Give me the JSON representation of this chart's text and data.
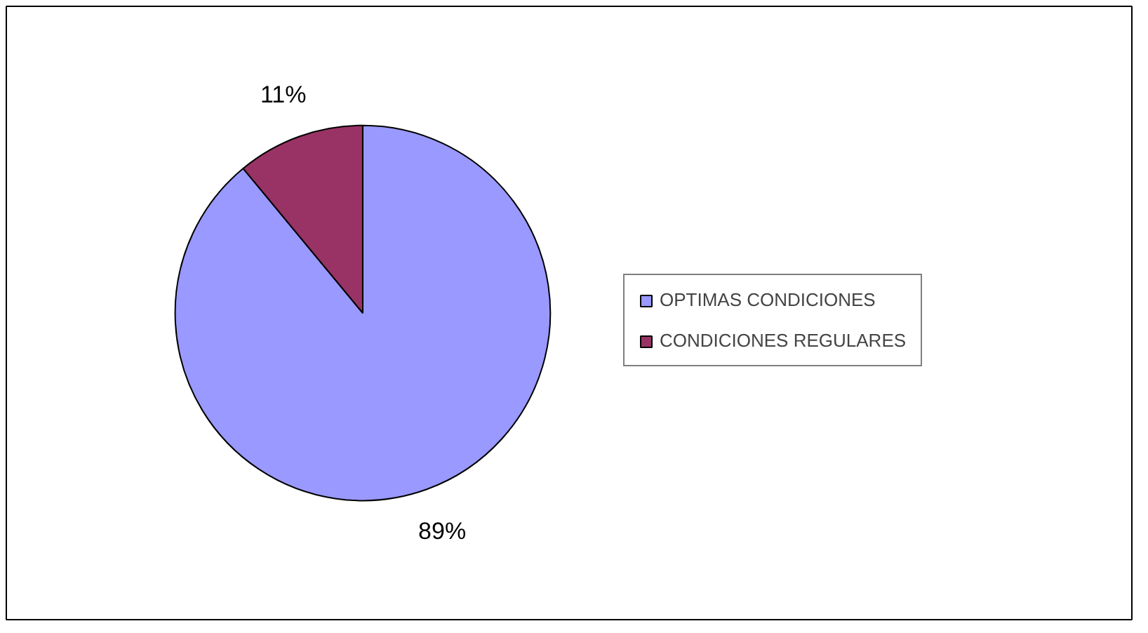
{
  "chart_data": {
    "type": "pie",
    "categories": [
      "OPTIMAS CONDICIONES",
      "CONDICIONES REGULARES"
    ],
    "values": [
      89,
      11
    ],
    "colors": [
      "#9999ff",
      "#993366"
    ],
    "value_labels": [
      "89%",
      "11%"
    ],
    "legend": "right"
  }
}
